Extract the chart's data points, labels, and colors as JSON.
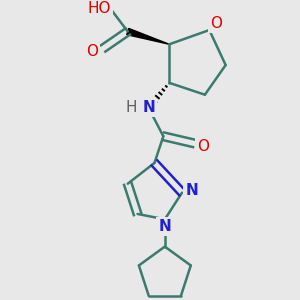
{
  "bg_color": "#e8e8e8",
  "bond_color": "#3d7a6e",
  "bond_lw": 1.8,
  "atom_colors": {
    "O": "#e00000",
    "N": "#2020d0",
    "C": "#000000",
    "H": "#606060"
  },
  "font_size": 11,
  "fig_size": [
    3.0,
    3.0
  ],
  "dpi": 100
}
